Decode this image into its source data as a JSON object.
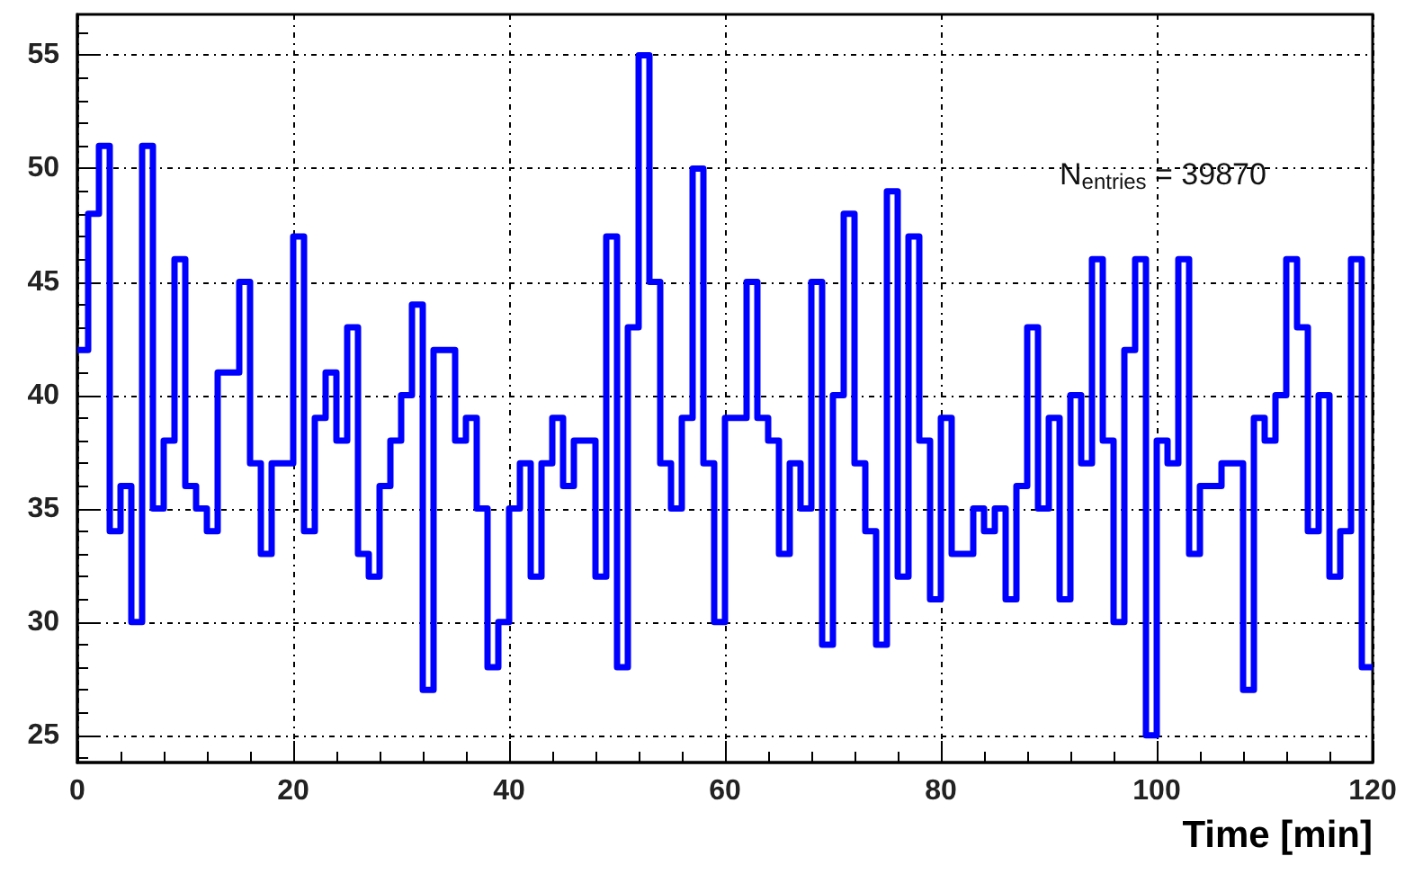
{
  "chart_data": {
    "type": "histogram",
    "xlabel": "Time [min]",
    "bins": [
      0,
      1,
      2,
      3,
      4,
      5,
      6,
      7,
      8,
      9,
      10,
      11,
      12,
      13,
      14,
      15,
      16,
      17,
      18,
      19,
      20,
      21,
      22,
      23,
      24,
      25,
      26,
      27,
      28,
      29,
      30,
      31,
      32,
      33,
      34,
      35,
      36,
      37,
      38,
      39,
      40,
      41,
      42,
      43,
      44,
      45,
      46,
      47,
      48,
      49,
      50,
      51,
      52,
      53,
      54,
      55,
      56,
      57,
      58,
      59,
      60,
      61,
      62,
      63,
      64,
      65,
      66,
      67,
      68,
      69,
      70,
      71,
      72,
      73,
      74,
      75,
      76,
      77,
      78,
      79,
      80,
      81,
      82,
      83,
      84,
      85,
      86,
      87,
      88,
      89,
      90,
      91,
      92,
      93,
      94,
      95,
      96,
      97,
      98,
      99,
      100,
      101,
      102,
      103,
      104,
      105,
      106,
      107,
      108,
      109,
      110,
      111,
      112,
      113,
      114,
      115,
      116,
      117,
      118,
      119,
      120
    ],
    "values": [
      42,
      48,
      51,
      34,
      36,
      30,
      51,
      35,
      38,
      46,
      36,
      35,
      34,
      41,
      41,
      45,
      37,
      33,
      37,
      37,
      47,
      34,
      39,
      41,
      38,
      43,
      33,
      32,
      36,
      38,
      40,
      44,
      27,
      42,
      42,
      38,
      39,
      35,
      28,
      30,
      35,
      37,
      32,
      37,
      39,
      36,
      38,
      38,
      32,
      47,
      28,
      43,
      55,
      45,
      37,
      35,
      39,
      50,
      37,
      30,
      39,
      39,
      45,
      39,
      38,
      33,
      37,
      35,
      45,
      29,
      40,
      48,
      37,
      34,
      29,
      49,
      32,
      47,
      38,
      31,
      39,
      33,
      33,
      35,
      34,
      35,
      31,
      36,
      43,
      35,
      39,
      31,
      40,
      37,
      46,
      38,
      30,
      42,
      46,
      25,
      38,
      37,
      46,
      33,
      36,
      36,
      37,
      37,
      27,
      39,
      38,
      40,
      46,
      43,
      34,
      40,
      32,
      34,
      46,
      28
    ],
    "color": "#0000ff",
    "xlim": [
      0,
      120
    ],
    "xticks": [
      0,
      20,
      40,
      60,
      80,
      100,
      120
    ],
    "ylim": [
      23.8,
      56.8
    ],
    "yticks": [
      25,
      30,
      35,
      40,
      45,
      50,
      55
    ],
    "grid": true,
    "annotations": [
      "N$_{entries}$ = 39870"
    ]
  }
}
